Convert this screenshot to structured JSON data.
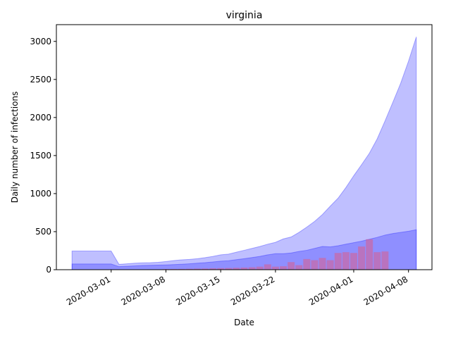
{
  "chart_data": {
    "type": "area",
    "title": "virginia",
    "xlabel": "Date",
    "ylabel": "Daily number of infections",
    "x_start": "2020-02-25",
    "x_end": "2020-04-09",
    "xlim": [
      "2020-02-23",
      "2020-04-11"
    ],
    "ylim": [
      0,
      3220
    ],
    "x_tick_labels": [
      "2020-03-01",
      "2020-03-08",
      "2020-03-15",
      "2020-03-22",
      "2020-04-01",
      "2020-04-08"
    ],
    "y_ticks": [
      0,
      500,
      1000,
      1500,
      2000,
      2500,
      3000
    ],
    "grid": false,
    "legend": "none",
    "series": [
      {
        "kind": "band",
        "color": "#0000ff",
        "opacity": 0.25,
        "lower": [
          0,
          0,
          0,
          0,
          0,
          0,
          0,
          0,
          0,
          0,
          0,
          0,
          0,
          0,
          0,
          0,
          0,
          0,
          0,
          0,
          0,
          0,
          0,
          0,
          0,
          0,
          0,
          0,
          0,
          0,
          0,
          0,
          0,
          0,
          0,
          0,
          0,
          0,
          0,
          0,
          0,
          0,
          0,
          0,
          0
        ],
        "upper": [
          245,
          245,
          245,
          245,
          245,
          245,
          70,
          78,
          85,
          90,
          92,
          97,
          108,
          120,
          130,
          135,
          145,
          158,
          175,
          195,
          205,
          230,
          255,
          280,
          305,
          335,
          360,
          405,
          430,
          490,
          560,
          635,
          725,
          835,
          940,
          1080,
          1235,
          1380,
          1530,
          1720,
          1955,
          2200,
          2450,
          2740,
          3060
        ]
      },
      {
        "kind": "band",
        "color": "#0000ff",
        "opacity": 0.25,
        "lower": [
          0,
          0,
          0,
          0,
          0,
          0,
          0,
          0,
          0,
          0,
          0,
          0,
          0,
          0,
          0,
          0,
          0,
          0,
          0,
          0,
          0,
          0,
          0,
          0,
          0,
          0,
          0,
          0,
          0,
          0,
          0,
          0,
          0,
          0,
          0,
          0,
          0,
          0,
          0,
          0,
          0,
          0,
          0,
          0,
          0
        ],
        "upper": [
          75,
          75,
          75,
          75,
          75,
          75,
          40,
          45,
          50,
          55,
          58,
          60,
          63,
          67,
          72,
          78,
          85,
          92,
          102,
          112,
          118,
          132,
          145,
          160,
          175,
          195,
          210,
          210,
          220,
          240,
          255,
          280,
          305,
          300,
          315,
          335,
          355,
          375,
          400,
          425,
          455,
          475,
          490,
          505,
          525
        ]
      },
      {
        "kind": "bar",
        "name": "",
        "color": "#dd5c8a",
        "opacity": 0.55,
        "values": [
          0,
          0,
          0,
          0,
          0,
          0,
          0,
          2,
          3,
          3,
          5,
          5,
          8,
          9,
          10,
          12,
          14,
          15,
          18,
          20,
          22,
          25,
          28,
          32,
          40,
          70,
          40,
          45,
          100,
          60,
          140,
          125,
          155,
          125,
          220,
          230,
          220,
          305,
          400,
          230,
          240,
          0,
          0,
          0,
          0
        ]
      }
    ]
  }
}
